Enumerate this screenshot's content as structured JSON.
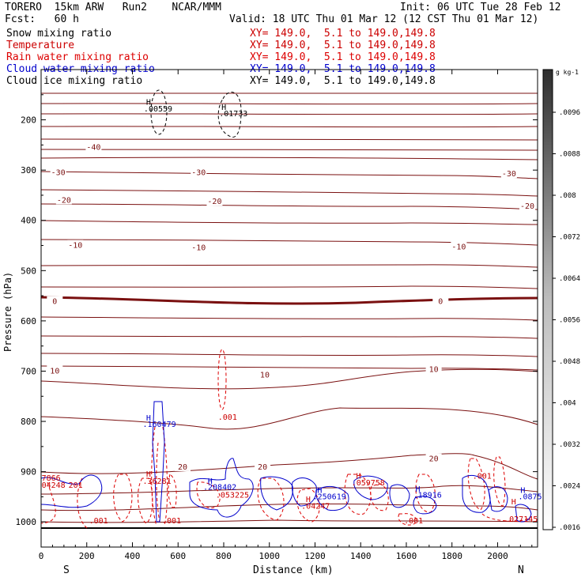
{
  "header": {
    "model": "TORERO  15km ARW   Run2    NCAR/MMM",
    "fcst": "Fcst:   60 h",
    "init": "Init: 06 UTC Tue 28 Feb 12",
    "valid": "Valid: 18 UTC Thu 01 Mar 12 (12 CST Thu 01 Mar 12)"
  },
  "legend": [
    {
      "name": "Snow mixing ratio",
      "xy": "XY= 149.0,  5.1 to 149.0,149.8",
      "color": "#000000"
    },
    {
      "name": "Temperature",
      "xy": "XY= 149.0,  5.1 to 149.0,149.8",
      "color": "#cc0000"
    },
    {
      "name": "Rain water mixing ratio",
      "xy": "XY= 149.0,  5.1 to 149.0,149.8",
      "color": "#dd0000"
    },
    {
      "name": "Cloud water mixing ratio",
      "xy": "XY= 149.0,  5.1 to 149.0,149.8",
      "color": "#0000cc"
    },
    {
      "name": "Cloud ice mixing ratio",
      "xy": "XY= 149.0,  5.1 to 149.0,149.8",
      "color": "#000000"
    }
  ],
  "chart_data": {
    "type": "contour cross-section",
    "xlabel": "Distance (km)",
    "ylabel": "Pressure (hPa)",
    "x_end_labels": {
      "left": "S",
      "right": "N"
    },
    "xlim": [
      0,
      2175
    ],
    "ylim": [
      1050,
      100
    ],
    "x_ticks": [
      0,
      200,
      400,
      600,
      800,
      1000,
      1200,
      1400,
      1600,
      1800,
      2000
    ],
    "y_ticks": [
      200,
      300,
      400,
      500,
      600,
      700,
      800,
      900,
      1000
    ],
    "y_tick_labels": [
      "200",
      "300",
      "400",
      "500",
      "600",
      "700",
      "800",
      "900",
      "1000"
    ],
    "temperature_labels": [
      {
        "text": "-40",
        "x": 230,
        "p": 255
      },
      {
        "text": "-30",
        "x": 75,
        "p": 305
      },
      {
        "text": "-30",
        "x": 690,
        "p": 305
      },
      {
        "text": "-30",
        "x": 2050,
        "p": 308
      },
      {
        "text": "-20",
        "x": 100,
        "p": 360
      },
      {
        "text": "-20",
        "x": 760,
        "p": 363
      },
      {
        "text": "-20",
        "x": 2130,
        "p": 372
      },
      {
        "text": "-10",
        "x": 150,
        "p": 450
      },
      {
        "text": "-10",
        "x": 690,
        "p": 455
      },
      {
        "text": "-10",
        "x": 1830,
        "p": 453
      },
      {
        "text": "0",
        "x": 60,
        "p": 562
      },
      {
        "text": "0",
        "x": 1750,
        "p": 562
      },
      {
        "text": "10",
        "x": 60,
        "p": 700
      },
      {
        "text": "10",
        "x": 980,
        "p": 708
      },
      {
        "text": "10",
        "x": 1720,
        "p": 697
      },
      {
        "text": "20",
        "x": 620,
        "p": 891
      },
      {
        "text": "20",
        "x": 970,
        "p": 891
      },
      {
        "text": "20",
        "x": 1720,
        "p": 875
      }
    ],
    "extrema_labels": [
      {
        "text": "H",
        "x": 460,
        "p": 170,
        "color": "#000000"
      },
      {
        "text": ".00559",
        "x": 450,
        "p": 183,
        "color": "#000000"
      },
      {
        "text": "H",
        "x": 790,
        "p": 180,
        "color": "#000000"
      },
      {
        "text": ".01733",
        "x": 780,
        "p": 193,
        "color": "#000000"
      },
      {
        "text": "H",
        "x": 460,
        "p": 798,
        "color": "#0000cc"
      },
      {
        "text": ".160479",
        "x": 445,
        "p": 811,
        "color": "#0000cc"
      },
      {
        "text": ".001",
        "x": 775,
        "p": 797,
        "color": "#cc0000"
      },
      {
        "text": "H",
        "x": 460,
        "p": 910,
        "color": "#cc0000"
      },
      {
        "text": ".36281",
        "x": 445,
        "p": 924,
        "color": "#cc0000"
      },
      {
        "text": "H",
        "x": 730,
        "p": 924,
        "color": "#0000cc"
      },
      {
        "text": ".208402",
        "x": 710,
        "p": 936,
        "color": "#0000cc"
      },
      {
        "text": ".053225",
        "x": 765,
        "p": 952,
        "color": "#cc0000"
      },
      {
        "text": "H",
        "x": 1210,
        "p": 942,
        "color": "#0000cc"
      },
      {
        "text": ".250619",
        "x": 1190,
        "p": 955,
        "color": "#0000cc"
      },
      {
        "text": "H",
        "x": 1160,
        "p": 960,
        "color": "#cc0000"
      },
      {
        "text": ".04247",
        "x": 1140,
        "p": 974,
        "color": "#cc0000"
      },
      {
        "text": "H",
        "x": 1380,
        "p": 914,
        "color": "#cc0000"
      },
      {
        "text": ".059758",
        "x": 1360,
        "p": 927,
        "color": "#cc0000"
      },
      {
        "text": "H",
        "x": 1640,
        "p": 940,
        "color": "#0000cc"
      },
      {
        "text": ".18916",
        "x": 1630,
        "p": 952,
        "color": "#0000cc"
      },
      {
        "text": ".001",
        "x": 1890,
        "p": 914,
        "color": "#cc0000"
      },
      {
        "text": ".001",
        "x": 210,
        "p": 1003,
        "color": "#cc0000"
      },
      {
        "text": ".001",
        "x": 530,
        "p": 1003,
        "color": "#cc0000"
      },
      {
        "text": ".001",
        "x": 1590,
        "p": 1003,
        "color": "#cc0000"
      },
      {
        "text": "H",
        "x": 2060,
        "p": 965,
        "color": "#cc0000"
      },
      {
        "text": ".027145",
        "x": 2030,
        "p": 1000,
        "color": "#cc0000"
      },
      {
        "text": "H",
        "x": 2100,
        "p": 942,
        "color": "#0000cc"
      },
      {
        "text": ".0875",
        "x": 2090,
        "p": 955,
        "color": "#0000cc"
      },
      {
        "text": "7866",
        "x": 2,
        "p": 918,
        "color": "#cc0000"
      },
      {
        "text": "04248",
        "x": 2,
        "p": 932,
        "color": "#cc0000"
      },
      {
        "text": "201",
        "x": 120,
        "p": 932,
        "color": "#cc0000"
      }
    ],
    "colorbar": {
      "unit": "g kg-1",
      "labels": [
        ".0096",
        ".0088",
        ".008",
        ".0072",
        ".0064",
        ".0056",
        ".0048",
        ".004",
        ".0032",
        ".0024",
        ".0016"
      ]
    },
    "grid": false
  }
}
